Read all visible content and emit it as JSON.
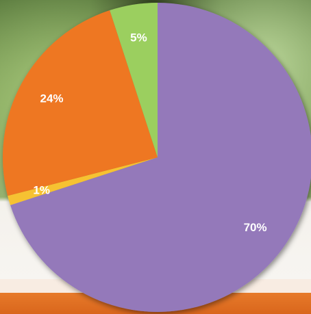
{
  "chart_data": {
    "type": "pie",
    "values": [
      70,
      1,
      24,
      5
    ],
    "value_labels": [
      "70%",
      "1%",
      "24%",
      "5%"
    ],
    "colors": [
      "#9479ba",
      "#f6c232",
      "#ee7722",
      "#9bcf5f"
    ]
  }
}
